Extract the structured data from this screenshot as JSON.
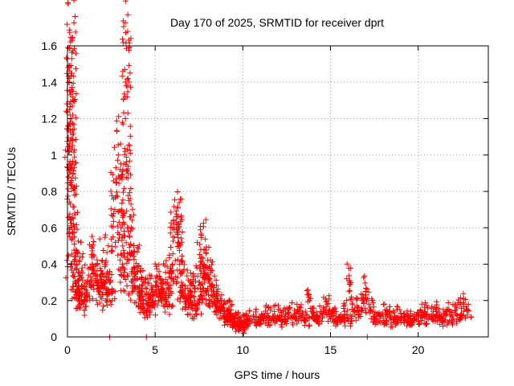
{
  "chart_data": {
    "type": "scatter",
    "title": "Day 170 of 2025, SRMTID for receiver dprt",
    "xlabel": "GPS time / hours",
    "ylabel": "SRMTID / TECUs",
    "xlim": [
      0,
      24
    ],
    "ylim": [
      0,
      1.6
    ],
    "xticks": [
      0,
      5,
      10,
      15,
      20
    ],
    "xtick_labels": [
      "0",
      "5",
      "10",
      "15",
      "20"
    ],
    "yticks": [
      0,
      0.2,
      0.4,
      0.6,
      0.8,
      1.0,
      1.2,
      1.4,
      1.6
    ],
    "ytick_labels": [
      "0",
      "0.2",
      "0.4",
      "0.6",
      "0.8",
      "1",
      "1.2",
      "1.4",
      "1.6"
    ],
    "grid": true,
    "marker": "plus",
    "color": "#ff0000",
    "series": [
      {
        "name": "SRMTID",
        "x": [
          0.05,
          0.08,
          0.1,
          0.12,
          0.14,
          0.16,
          0.18,
          0.2,
          0.22,
          0.25,
          0.28,
          0.3,
          0.32,
          0.35,
          0.38,
          0.4,
          0.45,
          0.5,
          0.55,
          0.6,
          0.65,
          0.7,
          0.8,
          0.9,
          1.0,
          1.1,
          1.2,
          1.3,
          1.4,
          1.5,
          1.6,
          1.7,
          1.8,
          1.9,
          2.0,
          2.1,
          2.2,
          2.3,
          2.4,
          2.5,
          2.6,
          2.7,
          2.8,
          2.9,
          3.0,
          3.05,
          3.1,
          3.15,
          3.2,
          3.25,
          3.3,
          3.35,
          3.4,
          3.45,
          3.5,
          3.55,
          3.6,
          3.65,
          3.7,
          3.8,
          3.9,
          4.0,
          4.1,
          4.2,
          4.3,
          4.4,
          4.5,
          4.6,
          4.7,
          4.8,
          4.9,
          5.0,
          5.1,
          5.2,
          5.3,
          5.4,
          5.5,
          5.6,
          5.7,
          5.8,
          5.9,
          6.0,
          6.1,
          6.2,
          6.3,
          6.35,
          6.4,
          6.5,
          6.6,
          6.7,
          6.8,
          6.9,
          7.0,
          7.1,
          7.2,
          7.3,
          7.4,
          7.5,
          7.6,
          7.7,
          7.75,
          7.8,
          7.9,
          8.0,
          8.1,
          8.2,
          8.3,
          8.4,
          8.5,
          8.6,
          8.7,
          8.8,
          8.9,
          9.0,
          9.1,
          9.2,
          9.3,
          9.4,
          9.5,
          9.6,
          9.7,
          9.8,
          9.9,
          10.0,
          10.2,
          10.4,
          10.6,
          10.8,
          11.0,
          11.2,
          11.4,
          11.6,
          11.8,
          12.0,
          12.2,
          12.4,
          12.6,
          12.8,
          13.0,
          13.2,
          13.4,
          13.6,
          13.8,
          14.0,
          14.2,
          14.4,
          14.6,
          14.8,
          15.0,
          15.2,
          15.4,
          15.6,
          15.8,
          16.0,
          16.1,
          16.2,
          16.4,
          16.6,
          16.8,
          17.0,
          17.2,
          17.4,
          17.6,
          17.8,
          18.0,
          18.2,
          18.4,
          18.6,
          18.8,
          19.0,
          19.2,
          19.4,
          19.6,
          19.8,
          20.0,
          20.2,
          20.4,
          20.6,
          20.8,
          21.0,
          21.2,
          21.4,
          21.6,
          21.8,
          22.0,
          22.2,
          22.4,
          22.6,
          22.8,
          2.4,
          4.5,
          17.1,
          0.15,
          0.25,
          0.3,
          3.3,
          3.4,
          6.3,
          7.8
        ],
        "y": [
          0.45,
          0.88,
          0.95,
          1.25,
          1.28,
          1.18,
          1.08,
          0.85,
          1.45,
          1.53,
          1.32,
          1.22,
          0.9,
          0.62,
          0.55,
          0.42,
          0.3,
          0.25,
          0.4,
          0.2,
          0.28,
          0.35,
          0.22,
          0.18,
          0.3,
          0.2,
          0.34,
          0.28,
          0.38,
          0.45,
          0.32,
          0.4,
          0.28,
          0.22,
          0.35,
          0.3,
          0.42,
          0.26,
          0.3,
          0.25,
          0.55,
          0.7,
          0.85,
          1.0,
          0.92,
          0.6,
          0.45,
          0.5,
          0.38,
          0.62,
          1.2,
          1.38,
          1.32,
          0.9,
          0.75,
          0.55,
          0.45,
          0.35,
          0.3,
          0.28,
          0.38,
          0.32,
          0.25,
          0.22,
          0.2,
          0.3,
          0.18,
          0.15,
          0.22,
          0.28,
          0.18,
          0.25,
          0.3,
          0.2,
          0.32,
          0.26,
          0.22,
          0.18,
          0.3,
          0.35,
          0.25,
          0.4,
          0.55,
          0.6,
          0.62,
          0.5,
          0.4,
          0.3,
          0.22,
          0.28,
          0.2,
          0.18,
          0.25,
          0.3,
          0.22,
          0.15,
          0.18,
          0.3,
          0.48,
          0.4,
          0.35,
          0.3,
          0.25,
          0.38,
          0.32,
          0.28,
          0.22,
          0.18,
          0.25,
          0.2,
          0.15,
          0.18,
          0.14,
          0.12,
          0.1,
          0.15,
          0.12,
          0.1,
          0.08,
          0.06,
          0.1,
          0.06,
          0.05,
          0.08,
          0.1,
          0.09,
          0.12,
          0.08,
          0.11,
          0.1,
          0.13,
          0.09,
          0.14,
          0.1,
          0.12,
          0.08,
          0.15,
          0.11,
          0.1,
          0.14,
          0.12,
          0.09,
          0.2,
          0.13,
          0.1,
          0.12,
          0.15,
          0.18,
          0.1,
          0.12,
          0.08,
          0.1,
          0.14,
          0.09,
          0.3,
          0.22,
          0.12,
          0.16,
          0.2,
          0.25,
          0.18,
          0.14,
          0.1,
          0.12,
          0.09,
          0.15,
          0.12,
          0.08,
          0.1,
          0.13,
          0.09,
          0.11,
          0.08,
          0.1,
          0.12,
          0.09,
          0.14,
          0.1,
          0.12,
          0.15,
          0.1,
          0.08,
          0.12,
          0.14,
          0.1,
          0.16,
          0.12,
          0.18,
          0.15,
          0.0,
          0.0,
          0.0,
          1.22,
          1.45,
          1.08,
          1.32,
          1.38,
          0.58,
          0.48
        ]
      }
    ]
  }
}
